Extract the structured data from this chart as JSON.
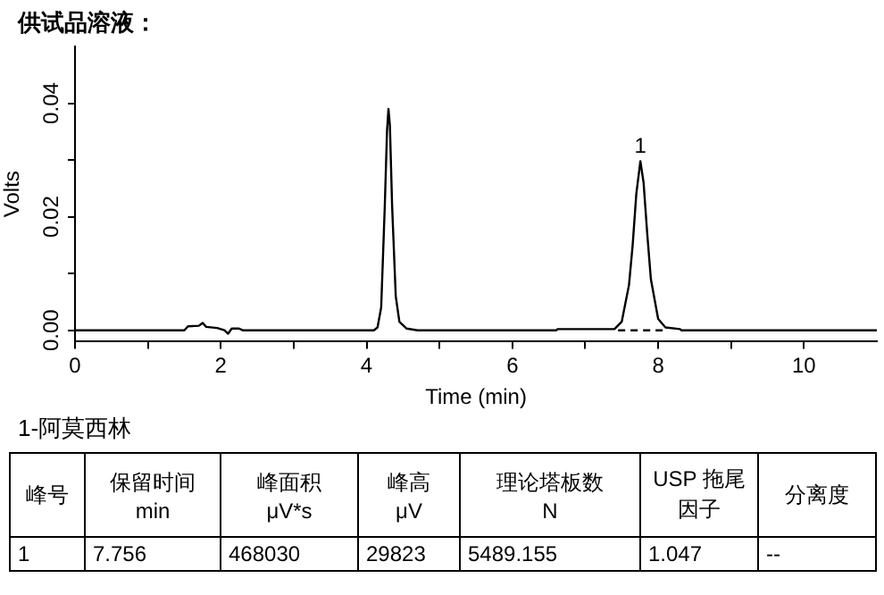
{
  "chart_data": {
    "type": "line",
    "title": "供试品溶液：",
    "xlabel": "Time (min)",
    "ylabel": "Volts",
    "xlim": [
      0,
      11
    ],
    "xticks": [
      0,
      {
        "value": 1,
        "label": null
      },
      2,
      {
        "value": 3,
        "label": null
      },
      4,
      {
        "value": 5,
        "label": null
      },
      6,
      {
        "value": 7,
        "label": null
      },
      8,
      {
        "value": 9,
        "label": null
      },
      10
    ],
    "ylim": [
      -0.002,
      0.05
    ],
    "yticks": [
      {
        "value": 0,
        "label": "0.00"
      },
      {
        "value": 0.01,
        "label": null
      },
      0.02,
      {
        "value": 0.03,
        "label": null
      },
      0.04
    ],
    "grid": false,
    "legend": false,
    "marker": "none",
    "series": [
      {
        "color": "#000000",
        "line_style": "solid",
        "x": [
          0,
          1.5,
          1.55,
          1.7,
          1.75,
          1.8,
          1.95,
          2.05,
          2.1,
          2.15,
          2.25,
          2.3,
          4.1,
          4.15,
          4.2,
          4.25,
          4.28,
          4.3,
          4.32,
          4.35,
          4.4,
          4.45,
          4.55,
          4.7,
          6.6,
          6.62,
          7.4,
          7.5,
          7.6,
          7.65,
          7.7,
          7.756,
          7.8,
          7.85,
          7.9,
          8.0,
          8.1,
          8.3,
          8.32,
          11
        ],
        "values": [
          0,
          0,
          0.0007,
          0.0008,
          0.0013,
          0.0006,
          0.0004,
          0,
          -0.0006,
          0.0003,
          0.0003,
          0,
          0,
          0.0005,
          0.004,
          0.022,
          0.035,
          0.039,
          0.036,
          0.022,
          0.006,
          0.0015,
          0.0003,
          0,
          0,
          0.0002,
          0.0002,
          0.0015,
          0.008,
          0.015,
          0.024,
          0.0298,
          0.026,
          0.017,
          0.009,
          0.002,
          0.0005,
          0.0002,
          0,
          0
        ]
      },
      {
        "color": "#000000",
        "line_style": "dashed",
        "x": [
          7.45,
          8.1
        ],
        "values": [
          0,
          0
        ]
      }
    ],
    "annotations": [
      {
        "text": "1",
        "x": 7.756,
        "y": 0.0298
      },
      "1-阿莫西林",
      "峰号",
      "保留时间\nmin",
      "峰面积\nμV*s",
      "峰高\nμV",
      "理论塔板数\nN",
      "USP 拖尾因子",
      "分离度",
      "1",
      "7.756",
      "468030",
      "29823",
      "5489.155",
      "1.047",
      "--"
    ]
  }
}
